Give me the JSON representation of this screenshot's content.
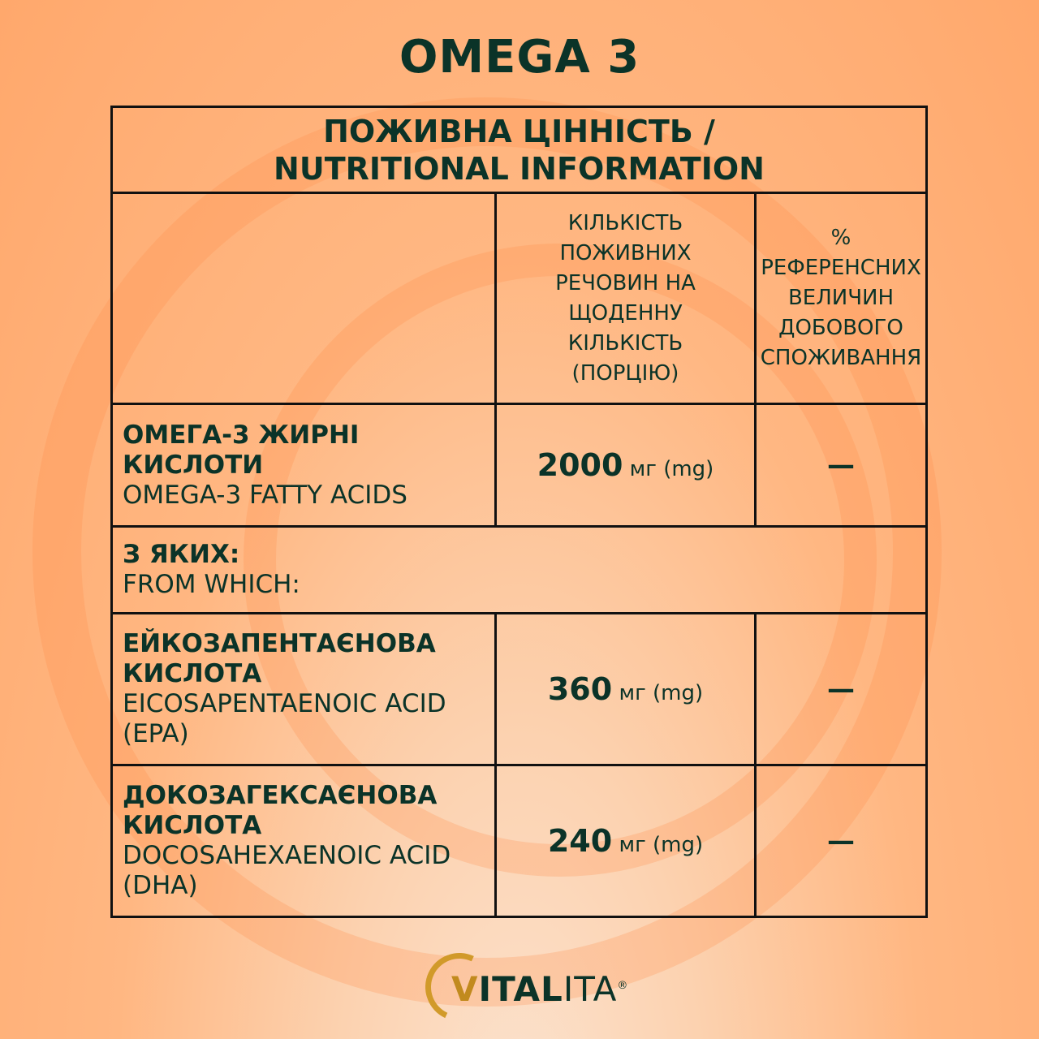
{
  "title": "OMEGA 3",
  "table": {
    "header_line1": "ПОЖИВНА ЦІННІСТЬ /",
    "header_line2": "NUTRITIONAL INFORMATION",
    "col_amount": "КІЛЬКІСТЬ ПОЖИВНИХ РЕЧОВИН НА ЩОДЕННУ КІЛЬКІСТЬ (ПОРЦІЮ)",
    "col_reference": "% РЕФЕРЕНСНИХ ВЕЛИЧИН ДОБОВОГО СПОЖИВАННЯ",
    "rows": [
      {
        "name_uk": "ОМЕГА-3 ЖИРНІ КИСЛОТИ",
        "name_en": "OMEGA-3 FATTY ACIDS",
        "amount": "2000",
        "unit": "мг (mg)",
        "reference": "—"
      },
      {
        "name_uk": "ЕЙКОЗАПЕНТАЄНОВА КИСЛОТА",
        "name_en": "EICOSAPENTAENOIC ACID (EPA)",
        "amount": "360",
        "unit": "мг (mg)",
        "reference": "—"
      },
      {
        "name_uk": "ДОКОЗАГЕКСАЄНОВА КИСЛОТА",
        "name_en": "DOCOSAHEXAENOIC ACID (DHA)",
        "amount": "240",
        "unit": "мг (mg)",
        "reference": "—"
      }
    ],
    "from_which_uk": "З ЯКИХ:",
    "from_which_en": "FROM WHICH:"
  },
  "logo": {
    "v": "V",
    "bold": "ITAL",
    "light": "ITA",
    "reg": "®"
  }
}
